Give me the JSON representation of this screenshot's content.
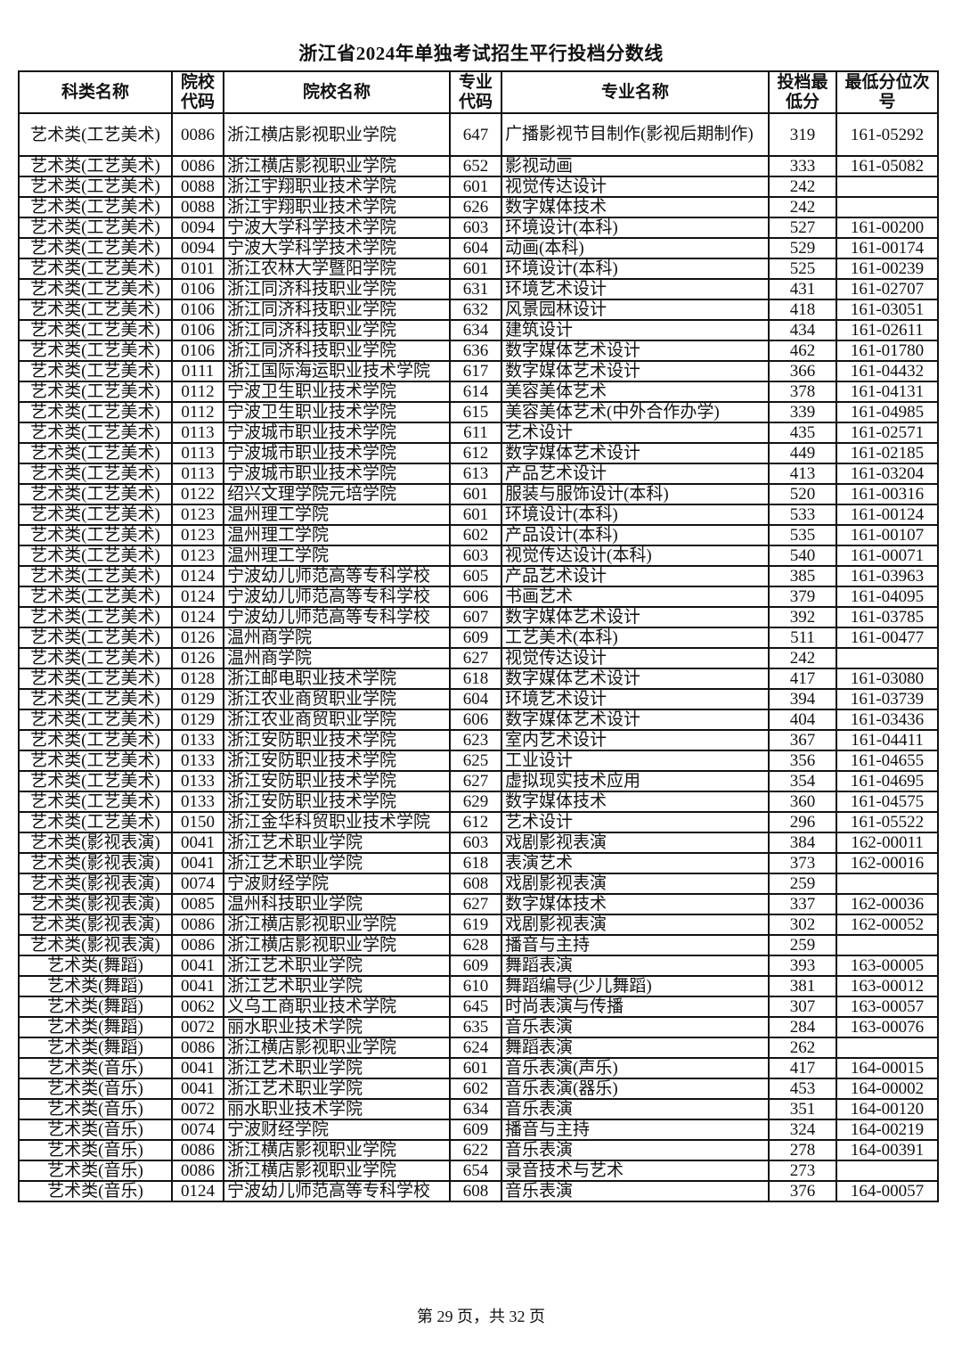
{
  "title": "浙江省2024年单独考试招生平行投档分数线",
  "headers": {
    "category": "科类名称",
    "school_code": "院校代码",
    "school_name": "院校名称",
    "major_code": "专业代码",
    "major_name": "专业名称",
    "min_score": "投档最低分",
    "min_rank": "最低分位次号"
  },
  "rows": [
    [
      "艺术类(工艺美术)",
      "0086",
      "浙江横店影视职业学院",
      "647",
      "广播影视节目制作(影视后期制作)",
      "319",
      "161-05292"
    ],
    [
      "艺术类(工艺美术)",
      "0086",
      "浙江横店影视职业学院",
      "652",
      "影视动画",
      "333",
      "161-05082"
    ],
    [
      "艺术类(工艺美术)",
      "0088",
      "浙江宇翔职业技术学院",
      "601",
      "视觉传达设计",
      "242",
      ""
    ],
    [
      "艺术类(工艺美术)",
      "0088",
      "浙江宇翔职业技术学院",
      "626",
      "数字媒体技术",
      "242",
      ""
    ],
    [
      "艺术类(工艺美术)",
      "0094",
      "宁波大学科学技术学院",
      "603",
      "环境设计(本科)",
      "527",
      "161-00200"
    ],
    [
      "艺术类(工艺美术)",
      "0094",
      "宁波大学科学技术学院",
      "604",
      "动画(本科)",
      "529",
      "161-00174"
    ],
    [
      "艺术类(工艺美术)",
      "0101",
      "浙江农林大学暨阳学院",
      "601",
      "环境设计(本科)",
      "525",
      "161-00239"
    ],
    [
      "艺术类(工艺美术)",
      "0106",
      "浙江同济科技职业学院",
      "631",
      "环境艺术设计",
      "431",
      "161-02707"
    ],
    [
      "艺术类(工艺美术)",
      "0106",
      "浙江同济科技职业学院",
      "632",
      "风景园林设计",
      "418",
      "161-03051"
    ],
    [
      "艺术类(工艺美术)",
      "0106",
      "浙江同济科技职业学院",
      "634",
      "建筑设计",
      "434",
      "161-02611"
    ],
    [
      "艺术类(工艺美术)",
      "0106",
      "浙江同济科技职业学院",
      "636",
      "数字媒体艺术设计",
      "462",
      "161-01780"
    ],
    [
      "艺术类(工艺美术)",
      "0111",
      "浙江国际海运职业技术学院",
      "617",
      "数字媒体艺术设计",
      "366",
      "161-04432"
    ],
    [
      "艺术类(工艺美术)",
      "0112",
      "宁波卫生职业技术学院",
      "614",
      "美容美体艺术",
      "378",
      "161-04131"
    ],
    [
      "艺术类(工艺美术)",
      "0112",
      "宁波卫生职业技术学院",
      "615",
      "美容美体艺术(中外合作办学)",
      "339",
      "161-04985"
    ],
    [
      "艺术类(工艺美术)",
      "0113",
      "宁波城市职业技术学院",
      "611",
      "艺术设计",
      "435",
      "161-02571"
    ],
    [
      "艺术类(工艺美术)",
      "0113",
      "宁波城市职业技术学院",
      "612",
      "数字媒体艺术设计",
      "449",
      "161-02185"
    ],
    [
      "艺术类(工艺美术)",
      "0113",
      "宁波城市职业技术学院",
      "613",
      "产品艺术设计",
      "413",
      "161-03204"
    ],
    [
      "艺术类(工艺美术)",
      "0122",
      "绍兴文理学院元培学院",
      "601",
      "服装与服饰设计(本科)",
      "520",
      "161-00316"
    ],
    [
      "艺术类(工艺美术)",
      "0123",
      "温州理工学院",
      "601",
      "环境设计(本科)",
      "533",
      "161-00124"
    ],
    [
      "艺术类(工艺美术)",
      "0123",
      "温州理工学院",
      "602",
      "产品设计(本科)",
      "535",
      "161-00107"
    ],
    [
      "艺术类(工艺美术)",
      "0123",
      "温州理工学院",
      "603",
      "视觉传达设计(本科)",
      "540",
      "161-00071"
    ],
    [
      "艺术类(工艺美术)",
      "0124",
      "宁波幼儿师范高等专科学校",
      "605",
      "产品艺术设计",
      "385",
      "161-03963"
    ],
    [
      "艺术类(工艺美术)",
      "0124",
      "宁波幼儿师范高等专科学校",
      "606",
      "书画艺术",
      "379",
      "161-04095"
    ],
    [
      "艺术类(工艺美术)",
      "0124",
      "宁波幼儿师范高等专科学校",
      "607",
      "数字媒体艺术设计",
      "392",
      "161-03785"
    ],
    [
      "艺术类(工艺美术)",
      "0126",
      "温州商学院",
      "609",
      "工艺美术(本科)",
      "511",
      "161-00477"
    ],
    [
      "艺术类(工艺美术)",
      "0126",
      "温州商学院",
      "627",
      "视觉传达设计",
      "242",
      ""
    ],
    [
      "艺术类(工艺美术)",
      "0128",
      "浙江邮电职业技术学院",
      "618",
      "数字媒体艺术设计",
      "417",
      "161-03080"
    ],
    [
      "艺术类(工艺美术)",
      "0129",
      "浙江农业商贸职业学院",
      "604",
      "环境艺术设计",
      "394",
      "161-03739"
    ],
    [
      "艺术类(工艺美术)",
      "0129",
      "浙江农业商贸职业学院",
      "606",
      "数字媒体艺术设计",
      "404",
      "161-03436"
    ],
    [
      "艺术类(工艺美术)",
      "0133",
      "浙江安防职业技术学院",
      "623",
      "室内艺术设计",
      "367",
      "161-04411"
    ],
    [
      "艺术类(工艺美术)",
      "0133",
      "浙江安防职业技术学院",
      "625",
      "工业设计",
      "356",
      "161-04655"
    ],
    [
      "艺术类(工艺美术)",
      "0133",
      "浙江安防职业技术学院",
      "627",
      "虚拟现实技术应用",
      "354",
      "161-04695"
    ],
    [
      "艺术类(工艺美术)",
      "0133",
      "浙江安防职业技术学院",
      "629",
      "数字媒体技术",
      "360",
      "161-04575"
    ],
    [
      "艺术类(工艺美术)",
      "0150",
      "浙江金华科贸职业技术学院",
      "612",
      "艺术设计",
      "296",
      "161-05522"
    ],
    [
      "艺术类(影视表演)",
      "0041",
      "浙江艺术职业学院",
      "603",
      "戏剧影视表演",
      "384",
      "162-00011"
    ],
    [
      "艺术类(影视表演)",
      "0041",
      "浙江艺术职业学院",
      "618",
      "表演艺术",
      "373",
      "162-00016"
    ],
    [
      "艺术类(影视表演)",
      "0074",
      "宁波财经学院",
      "608",
      "戏剧影视表演",
      "259",
      ""
    ],
    [
      "艺术类(影视表演)",
      "0085",
      "温州科技职业学院",
      "627",
      "数字媒体技术",
      "337",
      "162-00036"
    ],
    [
      "艺术类(影视表演)",
      "0086",
      "浙江横店影视职业学院",
      "619",
      "戏剧影视表演",
      "302",
      "162-00052"
    ],
    [
      "艺术类(影视表演)",
      "0086",
      "浙江横店影视职业学院",
      "628",
      "播音与主持",
      "259",
      ""
    ],
    [
      "艺术类(舞蹈)",
      "0041",
      "浙江艺术职业学院",
      "609",
      "舞蹈表演",
      "393",
      "163-00005"
    ],
    [
      "艺术类(舞蹈)",
      "0041",
      "浙江艺术职业学院",
      "610",
      "舞蹈编导(少儿舞蹈)",
      "381",
      "163-00012"
    ],
    [
      "艺术类(舞蹈)",
      "0062",
      "义乌工商职业技术学院",
      "645",
      "时尚表演与传播",
      "307",
      "163-00057"
    ],
    [
      "艺术类(舞蹈)",
      "0072",
      "丽水职业技术学院",
      "635",
      "音乐表演",
      "284",
      "163-00076"
    ],
    [
      "艺术类(舞蹈)",
      "0086",
      "浙江横店影视职业学院",
      "624",
      "舞蹈表演",
      "262",
      ""
    ],
    [
      "艺术类(音乐)",
      "0041",
      "浙江艺术职业学院",
      "601",
      "音乐表演(声乐)",
      "417",
      "164-00015"
    ],
    [
      "艺术类(音乐)",
      "0041",
      "浙江艺术职业学院",
      "602",
      "音乐表演(器乐)",
      "453",
      "164-00002"
    ],
    [
      "艺术类(音乐)",
      "0072",
      "丽水职业技术学院",
      "634",
      "音乐表演",
      "351",
      "164-00120"
    ],
    [
      "艺术类(音乐)",
      "0074",
      "宁波财经学院",
      "609",
      "播音与主持",
      "324",
      "164-00219"
    ],
    [
      "艺术类(音乐)",
      "0086",
      "浙江横店影视职业学院",
      "622",
      "音乐表演",
      "278",
      "164-00391"
    ],
    [
      "艺术类(音乐)",
      "0086",
      "浙江横店影视职业学院",
      "654",
      "录音技术与艺术",
      "273",
      ""
    ],
    [
      "艺术类(音乐)",
      "0124",
      "宁波幼儿师范高等专科学校",
      "608",
      "音乐表演",
      "376",
      "164-00057"
    ]
  ],
  "footer": "第 29 页，共 32 页"
}
